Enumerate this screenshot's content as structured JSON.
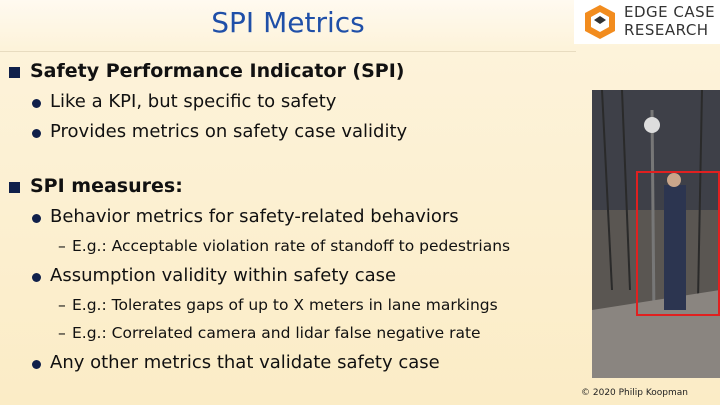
{
  "header": {
    "title": "SPI Metrics",
    "logo": [
      "EDGE CASE",
      "RESEARCH"
    ]
  },
  "bullets": [
    {
      "text": "Safety Performance Indicator (SPI)",
      "items": [
        {
          "text": "Like a KPI, but specific to safety"
        },
        {
          "text": "Provides metrics on safety case validity"
        }
      ]
    },
    {
      "text": "SPI measures:",
      "items": [
        {
          "text": "Behavior metrics for safety-related behaviors",
          "items": [
            "E.g.: Acceptable violation rate of standoff to pedestrians"
          ]
        },
        {
          "text": "Assumption validity within safety case",
          "items": [
            "E.g.: Tolerates gaps of up to X meters in lane markings",
            "E.g.: Correlated camera and lidar false negative rate"
          ]
        },
        {
          "text": "Any other metrics that validate safety case"
        }
      ]
    }
  ],
  "footer": {
    "copyright": "© 2020 Philip Koopman"
  }
}
